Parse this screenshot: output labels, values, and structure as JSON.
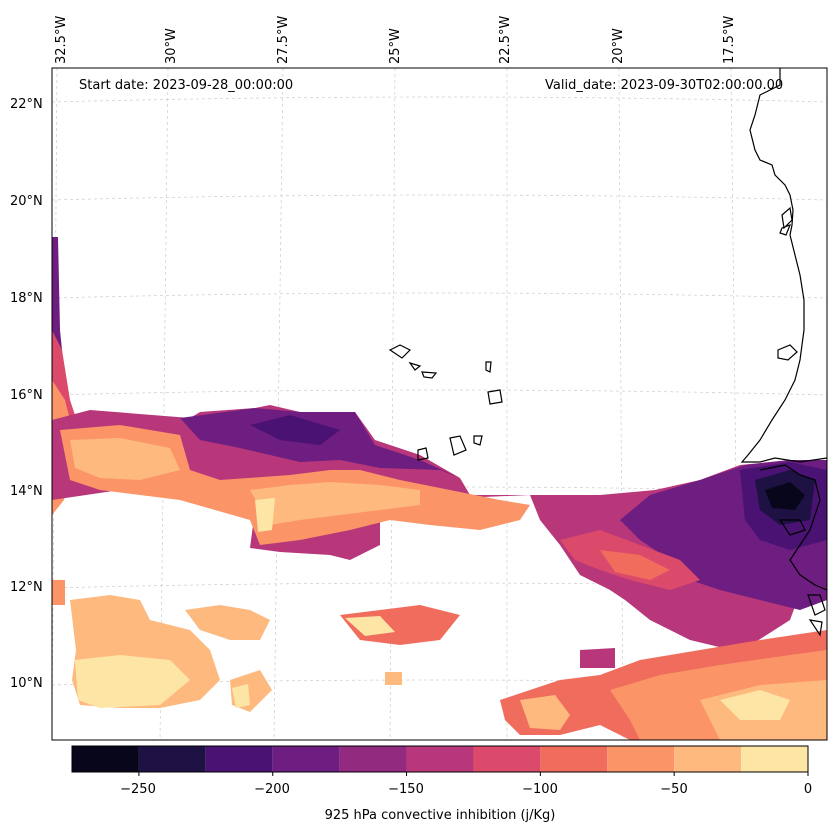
{
  "map": {
    "start_date": "Start date: 2023-09-28_00:00:00",
    "valid_date": "Valid_date: 2023-09-30T02:00:00.00",
    "lon_labels": [
      "32.5°W",
      "30°W",
      "27.5°W",
      "25°W",
      "22.5°W",
      "20°W",
      "17.5°W"
    ],
    "lat_labels": [
      "22°N",
      "20°N",
      "18°N",
      "16°N",
      "14°N",
      "12°N",
      "10°N"
    ],
    "gridlines": true
  },
  "colorbar": {
    "label": "925 hPa convective inhibition (j/Kg)",
    "ticks": [
      "−250",
      "−200",
      "−150",
      "−100",
      "−50",
      "0"
    ],
    "levels": [
      -275,
      -250,
      -225,
      -200,
      -175,
      -150,
      -125,
      -100,
      -75,
      -50,
      -25,
      0
    ],
    "colors": [
      "#08061a",
      "#1e1143",
      "#4a1273",
      "#6e1d81",
      "#922a80",
      "#b8377a",
      "#dc4a6b",
      "#f06c5d",
      "#fb9467",
      "#feb97f",
      "#fde5a6"
    ]
  },
  "colors": {
    "coast": "#000000",
    "grid": "#cccccc"
  }
}
